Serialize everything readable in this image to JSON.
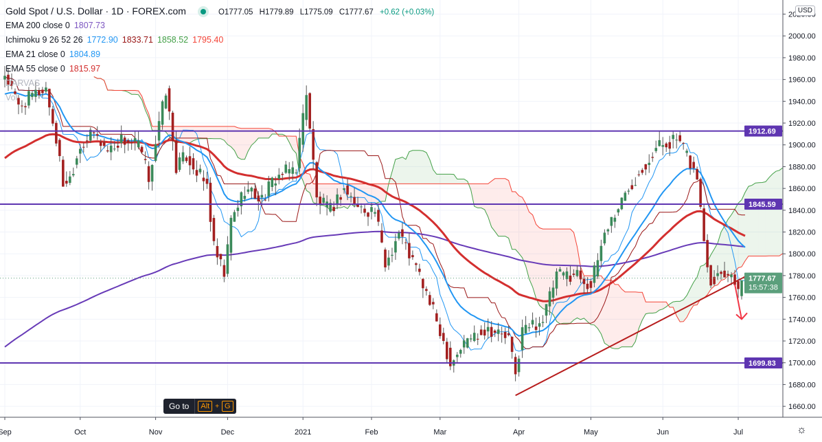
{
  "header": {
    "symbol_title": "Gold Spot / U.S. Dollar · 1D · FOREX.com",
    "open": "O1777.05",
    "high": "H1779.89",
    "low": "L1775.09",
    "close": "C1777.67",
    "change": "+0.62 (+0.03%)"
  },
  "indicators": [
    {
      "name": "EMA 200 close 0",
      "values": [
        "1807.73"
      ],
      "colors": [
        "#7e57c2"
      ]
    },
    {
      "name": "Ichimoku 9 26 52 26",
      "values": [
        "1772.90",
        "1833.71",
        "1858.52",
        "1795.40"
      ],
      "colors": [
        "#2196f3",
        "#991515",
        "#43a047",
        "#f44336"
      ]
    },
    {
      "name": "EMA 21 close 0",
      "values": [
        "1804.89"
      ],
      "colors": [
        "#2196f3"
      ]
    },
    {
      "name": "EMA 55 close 0",
      "values": [
        "1815.97"
      ],
      "colors": [
        "#d32f2f"
      ]
    }
  ],
  "faded_labels": {
    "darvas": "DARVAS",
    "vol": "Vol"
  },
  "currency": "USD",
  "goto_tooltip": {
    "label": "Go to",
    "key1": "Alt",
    "plus": "+",
    "key2": "G"
  },
  "icons": {
    "settings": "gear-icon"
  },
  "chart_data": {
    "type": "candlestick",
    "title": "Gold Spot / U.S. Dollar · 1D",
    "y_ticks": [
      1660,
      1680,
      1700,
      1720,
      1740,
      1760,
      1780,
      1800,
      1820,
      1840,
      1860,
      1880,
      1900,
      1920,
      1940,
      1960,
      1980,
      2000,
      2020
    ],
    "ylim": [
      1645,
      2030
    ],
    "x_labels": [
      {
        "label": "Sep",
        "day": 0
      },
      {
        "label": "Oct",
        "day": 22
      },
      {
        "label": "Nov",
        "day": 44
      },
      {
        "label": "Dec",
        "day": 65
      },
      {
        "label": "2021",
        "day": 87
      },
      {
        "label": "Feb",
        "day": 107
      },
      {
        "label": "Mar",
        "day": 127
      },
      {
        "label": "Apr",
        "day": 150
      },
      {
        "label": "May",
        "day": 171
      },
      {
        "label": "Jun",
        "day": 192
      },
      {
        "label": "Jul",
        "day": 214
      }
    ],
    "trading_days": 217,
    "close_path": [
      [
        0,
        1965
      ],
      [
        4,
        1935
      ],
      [
        8,
        1945
      ],
      [
        12,
        1952
      ],
      [
        15,
        1905
      ],
      [
        17,
        1865
      ],
      [
        19,
        1870
      ],
      [
        22,
        1900
      ],
      [
        26,
        1910
      ],
      [
        30,
        1895
      ],
      [
        34,
        1905
      ],
      [
        39,
        1900
      ],
      [
        42,
        1870
      ],
      [
        47,
        1950
      ],
      [
        50,
        1880
      ],
      [
        53,
        1890
      ],
      [
        59,
        1862
      ],
      [
        61,
        1805
      ],
      [
        64,
        1780
      ],
      [
        66,
        1830
      ],
      [
        70,
        1860
      ],
      [
        75,
        1850
      ],
      [
        79,
        1870
      ],
      [
        85,
        1880
      ],
      [
        88,
        1950
      ],
      [
        91,
        1850
      ],
      [
        95,
        1840
      ],
      [
        99,
        1860
      ],
      [
        103,
        1842
      ],
      [
        108,
        1840
      ],
      [
        111,
        1790
      ],
      [
        115,
        1820
      ],
      [
        121,
        1780
      ],
      [
        127,
        1730
      ],
      [
        130,
        1700
      ],
      [
        135,
        1722
      ],
      [
        141,
        1732
      ],
      [
        147,
        1722
      ],
      [
        149,
        1688
      ],
      [
        151,
        1730
      ],
      [
        157,
        1740
      ],
      [
        161,
        1780
      ],
      [
        167,
        1782
      ],
      [
        171,
        1770
      ],
      [
        175,
        1820
      ],
      [
        182,
        1860
      ],
      [
        186,
        1880
      ],
      [
        191,
        1900
      ],
      [
        196,
        1905
      ],
      [
        199,
        1890
      ],
      [
        202,
        1870
      ],
      [
        204,
        1812
      ],
      [
        206,
        1775
      ],
      [
        209,
        1785
      ],
      [
        213,
        1778
      ],
      [
        214,
        1765
      ],
      [
        216,
        1777.67
      ]
    ],
    "ema_seeds": {
      "ema200": 1712,
      "ema55": 1885,
      "ema21": 1945
    },
    "horizontal_levels": [
      {
        "label": "1912.69",
        "value": 1912.69
      },
      {
        "label": "1845.59",
        "value": 1845.59
      },
      {
        "label": "1699.83",
        "value": 1699.83
      }
    ],
    "trend_line": {
      "from": [
        149,
        1670
      ],
      "to": [
        216,
        1779
      ]
    },
    "arrow": {
      "from": [
        213,
        1772
      ],
      "to": [
        215,
        1740
      ]
    },
    "last_price": {
      "label": "1777.67",
      "countdown": "15:57:38",
      "value": 1777.67
    }
  }
}
